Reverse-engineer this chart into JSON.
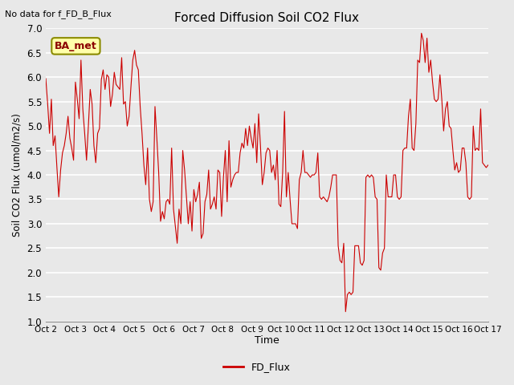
{
  "title": "Forced Diffusion Soil CO2 Flux",
  "top_left_text": "No data for f_FD_B_Flux",
  "ylabel": "Soil CO2 Flux (umol/m2/s)",
  "xlabel": "Time",
  "legend_label": "FD_Flux",
  "legend_color": "#cc0000",
  "line_color": "#cc0000",
  "line_width": 0.8,
  "ylim": [
    1.0,
    7.0
  ],
  "yticks": [
    1.0,
    1.5,
    2.0,
    2.5,
    3.0,
    3.5,
    4.0,
    4.5,
    5.0,
    5.5,
    6.0,
    6.5,
    7.0
  ],
  "bg_color": "#e8e8e8",
  "plot_bg_color": "#e8e8e8",
  "grid_color": "white",
  "annotation_text": "BA_met",
  "annotation_box_color": "#ffffaa",
  "annotation_box_edge_color": "#8b8b00",
  "dates": [
    "Oct 2",
    "Oct 3",
    "Oct 4",
    "Oct 5",
    "Oct 6",
    "Oct 7",
    "Oct 8",
    "Oct 9",
    "Oct 10",
    "Oct 11",
    "Oct 12",
    "Oct 13",
    "Oct 14",
    "Oct 15",
    "Oct 16",
    "Oct 17"
  ],
  "y_values": [
    5.97,
    5.45,
    4.85,
    5.55,
    4.6,
    4.8,
    4.15,
    3.55,
    4.1,
    4.45,
    4.6,
    4.85,
    5.2,
    4.75,
    4.55,
    4.3,
    5.9,
    5.55,
    5.15,
    6.35,
    5.35,
    4.85,
    4.3,
    5.0,
    5.75,
    5.45,
    4.6,
    4.25,
    4.85,
    4.95,
    5.95,
    6.15,
    5.75,
    6.05,
    6.0,
    5.4,
    5.65,
    6.1,
    5.85,
    5.8,
    5.75,
    6.4,
    5.45,
    5.5,
    5.0,
    5.2,
    5.8,
    6.35,
    6.55,
    6.25,
    6.15,
    5.4,
    4.85,
    4.2,
    3.8,
    4.55,
    3.5,
    3.25,
    3.45,
    5.4,
    4.75,
    4.05,
    3.05,
    3.25,
    3.1,
    3.45,
    3.5,
    3.4,
    4.55,
    3.3,
    2.95,
    2.6,
    3.3,
    3.0,
    4.5,
    4.1,
    3.55,
    3.0,
    3.45,
    2.85,
    3.7,
    3.45,
    3.6,
    3.85,
    2.7,
    2.8,
    3.45,
    3.6,
    4.1,
    3.3,
    3.4,
    3.55,
    3.3,
    4.1,
    4.05,
    3.15,
    3.95,
    4.5,
    3.45,
    4.7,
    3.75,
    3.9,
    4.0,
    4.05,
    4.05,
    4.45,
    4.65,
    4.55,
    4.95,
    4.6,
    5.0,
    4.75,
    4.55,
    5.05,
    4.25,
    5.25,
    4.6,
    3.8,
    4.05,
    4.45,
    4.55,
    4.5,
    4.05,
    4.2,
    3.9,
    4.5,
    3.4,
    3.35,
    4.05,
    5.3,
    3.55,
    4.05,
    3.5,
    3.0,
    3.0,
    3.0,
    2.9,
    3.9,
    4.05,
    4.5,
    4.05,
    4.05,
    4.0,
    3.95,
    4.0,
    4.0,
    4.05,
    4.45,
    3.55,
    3.5,
    3.55,
    3.5,
    3.45,
    3.55,
    3.75,
    4.0,
    4.0,
    4.0,
    2.55,
    2.25,
    2.2,
    2.6,
    1.2,
    1.55,
    1.6,
    1.55,
    1.6,
    2.55,
    2.55,
    2.55,
    2.2,
    2.15,
    2.25,
    3.95,
    4.0,
    3.95,
    4.0,
    3.95,
    3.55,
    3.5,
    2.1,
    2.05,
    2.4,
    2.5,
    4.0,
    3.55,
    3.55,
    3.55,
    4.0,
    4.0,
    3.55,
    3.5,
    3.55,
    4.5,
    4.55,
    4.55,
    5.2,
    5.55,
    4.55,
    4.5,
    5.05,
    6.35,
    6.3,
    6.9,
    6.75,
    6.3,
    6.8,
    6.1,
    6.35,
    5.9,
    5.55,
    5.5,
    5.55,
    6.05,
    5.55,
    4.9,
    5.35,
    5.5,
    5.0,
    4.95,
    4.5,
    4.1,
    4.25,
    4.05,
    4.1,
    4.55,
    4.55,
    4.25,
    3.55,
    3.5,
    3.55,
    5.0,
    4.5,
    4.55,
    4.5,
    5.35,
    4.25,
    4.2,
    4.15,
    4.2
  ]
}
